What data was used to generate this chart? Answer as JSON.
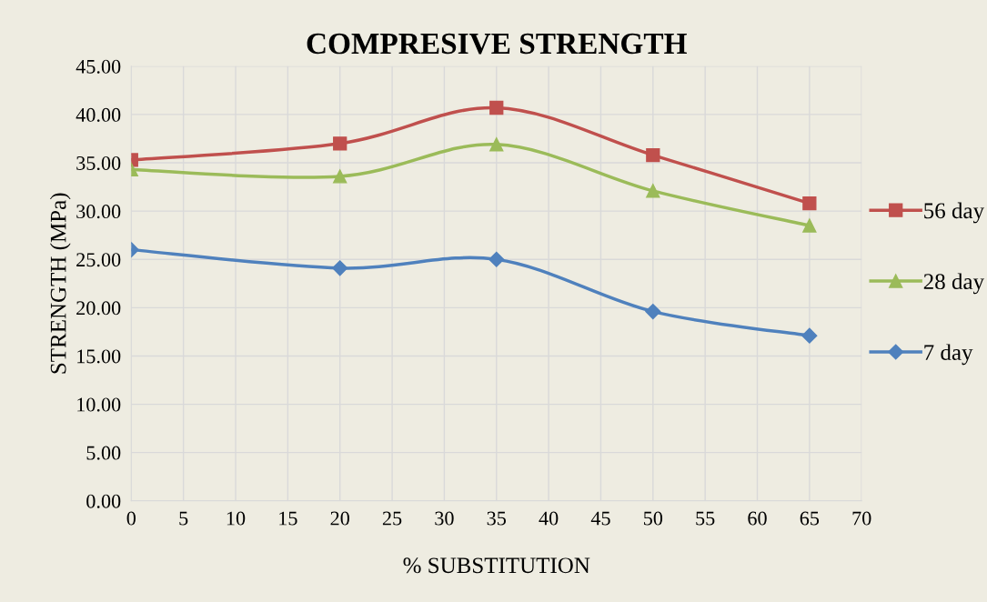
{
  "chart_data": {
    "type": "line",
    "title": "COMPRESIVE STRENGTH",
    "xlabel": "% SUBSTITUTION",
    "ylabel": "STRENGTH (MPa)",
    "x": [
      0,
      20,
      35,
      50,
      65
    ],
    "series": [
      {
        "name": "56 day",
        "color": "#c0504d",
        "marker": "square",
        "values": [
          35.3,
          37.0,
          40.7,
          35.8,
          30.8
        ]
      },
      {
        "name": "28 day",
        "color": "#9bbb59",
        "marker": "triangle",
        "values": [
          34.3,
          33.6,
          36.9,
          32.1,
          28.5
        ]
      },
      {
        "name": "7 day",
        "color": "#4f81bd",
        "marker": "diamond",
        "values": [
          26.0,
          24.1,
          25.0,
          19.6,
          17.1
        ]
      }
    ],
    "xlim": [
      0,
      70
    ],
    "xticks": [
      0,
      5,
      10,
      15,
      20,
      25,
      30,
      35,
      40,
      45,
      50,
      55,
      60,
      65,
      70
    ],
    "ylim": [
      0,
      45
    ],
    "yticks": [
      {
        "value": 0,
        "label": "0.00"
      },
      {
        "value": 5,
        "label": "5.00"
      },
      {
        "value": 10,
        "label": "10.00"
      },
      {
        "value": 15,
        "label": "15.00"
      },
      {
        "value": 20,
        "label": "20.00"
      },
      {
        "value": 25,
        "label": "25.00"
      },
      {
        "value": 30,
        "label": "30.00"
      },
      {
        "value": 35,
        "label": "35.00"
      },
      {
        "value": 40,
        "label": "40.00"
      },
      {
        "value": 45,
        "label": "45.00"
      }
    ],
    "grid": true,
    "legend": "right",
    "line_style": "solid"
  }
}
